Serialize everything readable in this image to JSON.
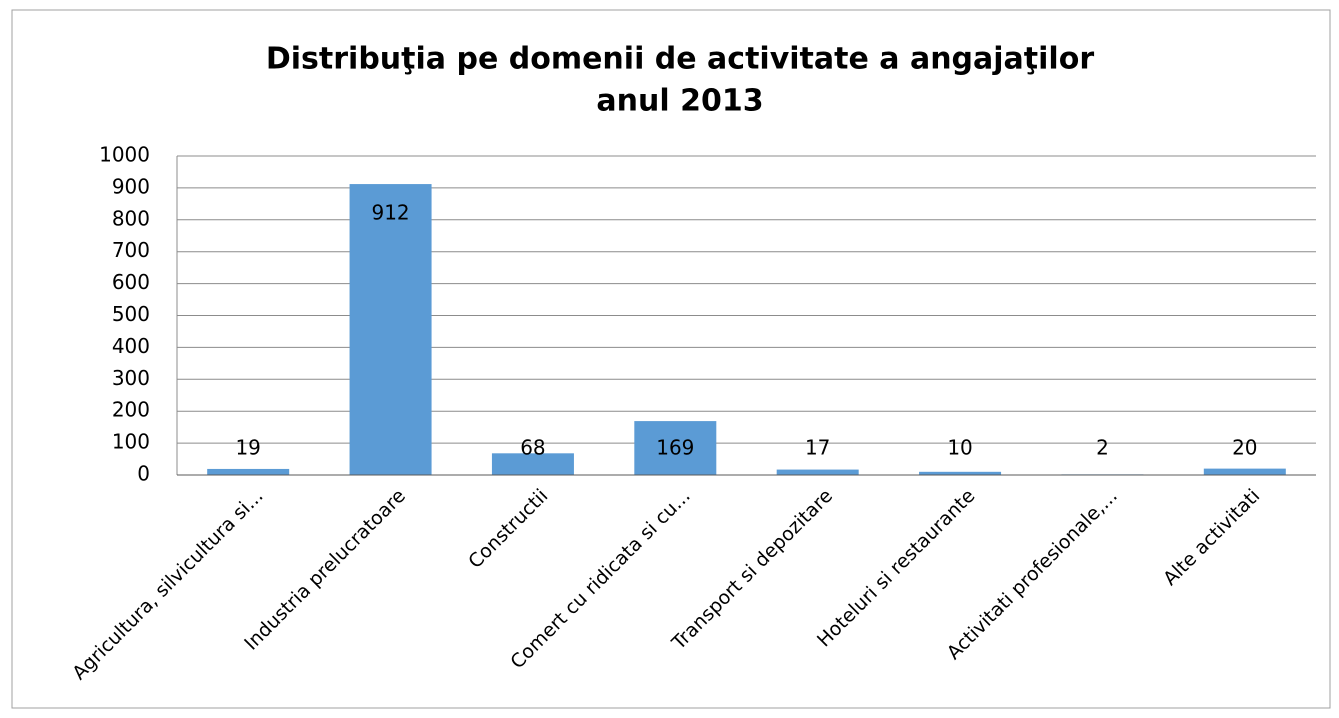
{
  "chart_data": {
    "type": "bar",
    "title": "Distribuţia pe domenii de activitate a angajaţilor",
    "subtitle": "anul 2013",
    "categories": [
      "Agricultura, silvicultura si...",
      "Industria prelucratoare",
      "Constructii",
      "Comert cu ridicata si cu...",
      "Transport si depozitare",
      "Hoteluri si restaurante",
      "Activitati profesionale,...",
      "Alte activitati"
    ],
    "values": [
      19,
      912,
      68,
      169,
      17,
      10,
      2,
      20
    ],
    "color": "#5b9bd5",
    "ylim": [
      0,
      1000
    ],
    "yticks": [
      0,
      100,
      200,
      300,
      400,
      500,
      600,
      700,
      800,
      900,
      1000
    ],
    "grid": true
  }
}
